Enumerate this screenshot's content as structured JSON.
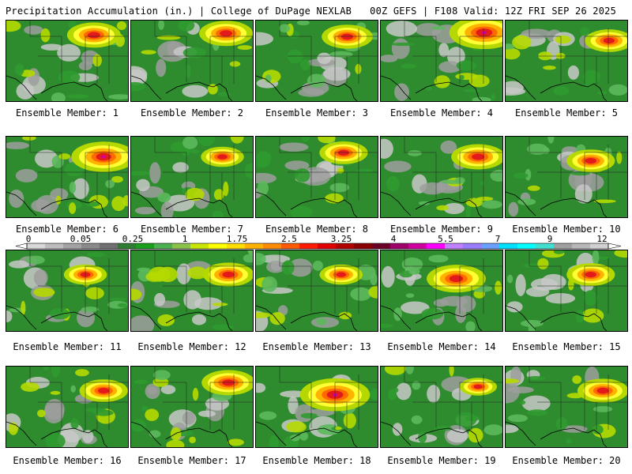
{
  "header": {
    "title_left": "Precipitation Accumulation (in.) | College of DuPage NEXLAB",
    "title_right": "00Z GEFS | F108 Valid: 12Z FRI SEP 26 2025"
  },
  "colorbar": {
    "tick_labels": [
      "0",
      "0.05",
      "0.25",
      "1",
      "1.75",
      "2.5",
      "3.25",
      "4",
      "5.5",
      "7",
      "9",
      "12"
    ],
    "colors": [
      "#d8d8d8",
      "#bdbdbd",
      "#a3a3a3",
      "#8a8a8a",
      "#707070",
      "#2e7d32",
      "#1b9e1b",
      "#4caf50",
      "#8bc34a",
      "#c8e600",
      "#ffff00",
      "#ffdd00",
      "#ffb300",
      "#ff8c00",
      "#ff5a00",
      "#ff1a00",
      "#e00000",
      "#b00000",
      "#8b0000",
      "#6b0026",
      "#a0006a",
      "#d000a0",
      "#ff00ff",
      "#c080ff",
      "#9a7dff",
      "#6aa0ff",
      "#00e0ff",
      "#00ffff",
      "#40e0d0",
      "#a0a0a0",
      "#b8b8b8",
      "#d0d0d0"
    ]
  },
  "panels": [
    {
      "label": "Ensemble Member: 1",
      "hot": [
        0.72,
        0.18,
        1.0
      ]
    },
    {
      "label": "Ensemble Member: 2",
      "hot": [
        0.78,
        0.16,
        1.0
      ]
    },
    {
      "label": "Ensemble Member: 3",
      "hot": [
        0.75,
        0.2,
        0.95
      ]
    },
    {
      "label": "Ensemble Member: 4",
      "hot": [
        0.85,
        0.15,
        1.3
      ]
    },
    {
      "label": "Ensemble Member: 5",
      "hot": [
        0.85,
        0.25,
        0.9
      ]
    },
    {
      "label": "Ensemble Member: 6",
      "hot": [
        0.8,
        0.25,
        1.2
      ]
    },
    {
      "label": "Ensemble Member: 7",
      "hot": [
        0.75,
        0.25,
        0.8
      ]
    },
    {
      "label": "Ensemble Member: 8",
      "hot": [
        0.72,
        0.2,
        0.9
      ]
    },
    {
      "label": "Ensemble Member: 9",
      "hot": [
        0.8,
        0.25,
        1.0
      ]
    },
    {
      "label": "Ensemble Member: 10",
      "hot": [
        0.7,
        0.3,
        0.9
      ]
    },
    {
      "label": "Ensemble Member: 11",
      "hot": [
        0.65,
        0.3,
        0.8
      ]
    },
    {
      "label": "Ensemble Member: 12",
      "hot": [
        0.8,
        0.3,
        0.95
      ]
    },
    {
      "label": "Ensemble Member: 13",
      "hot": [
        0.7,
        0.3,
        0.8
      ]
    },
    {
      "label": "Ensemble Member: 14",
      "hot": [
        0.62,
        0.35,
        1.1
      ]
    },
    {
      "label": "Ensemble Member: 15",
      "hot": [
        0.7,
        0.3,
        0.9
      ]
    },
    {
      "label": "Ensemble Member: 16",
      "hot": [
        0.8,
        0.3,
        0.9
      ]
    },
    {
      "label": "Ensemble Member: 17",
      "hot": [
        0.8,
        0.2,
        1.0
      ]
    },
    {
      "label": "Ensemble Member: 18",
      "hot": [
        0.65,
        0.35,
        1.3
      ]
    },
    {
      "label": "Ensemble Member: 19",
      "hot": [
        0.8,
        0.25,
        0.7
      ]
    },
    {
      "label": "Ensemble Member: 20",
      "hot": [
        0.8,
        0.3,
        0.95
      ]
    }
  ]
}
